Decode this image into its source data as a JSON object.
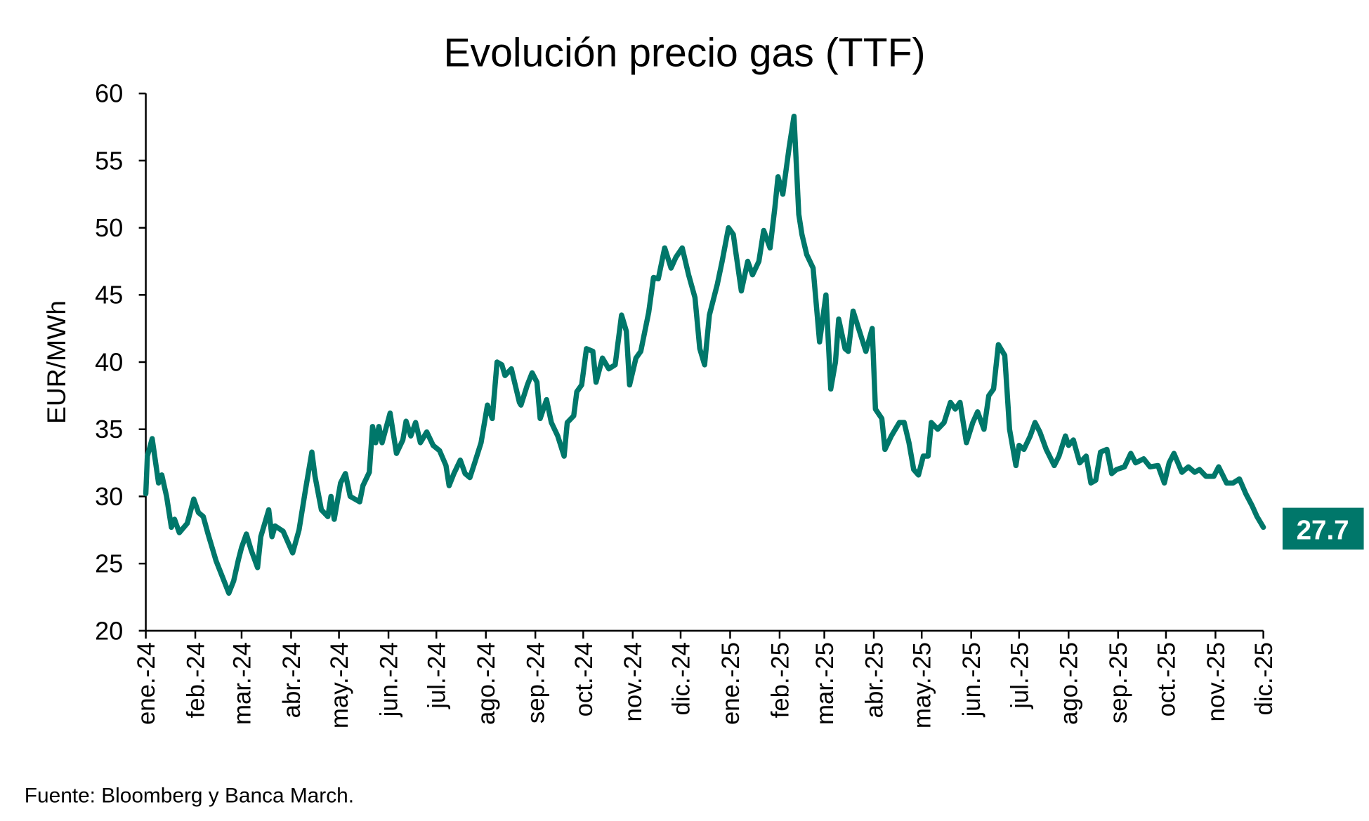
{
  "chart_data": {
    "type": "line",
    "title": "Evolución precio gas (TTF)",
    "ylabel": "EUR/MWh",
    "xlabel": "",
    "source": "Fuente: Bloomberg y Banca March.",
    "ylim": [
      20,
      60
    ],
    "yticks": [
      20,
      25,
      30,
      35,
      40,
      45,
      50,
      55,
      60
    ],
    "xlim": [
      "2024-01-01",
      "2025-12-01"
    ],
    "xticks": [
      {
        "date": "2024-01-01",
        "label": "ene.-24"
      },
      {
        "date": "2024-02-01",
        "label": "feb.-24"
      },
      {
        "date": "2024-03-01",
        "label": "mar.-24"
      },
      {
        "date": "2024-04-01",
        "label": "abr.-24"
      },
      {
        "date": "2024-05-01",
        "label": "may.-24"
      },
      {
        "date": "2024-06-01",
        "label": "jun.-24"
      },
      {
        "date": "2024-07-01",
        "label": "jul.-24"
      },
      {
        "date": "2024-08-01",
        "label": "ago.-24"
      },
      {
        "date": "2024-09-01",
        "label": "sep.-24"
      },
      {
        "date": "2024-10-01",
        "label": "oct.-24"
      },
      {
        "date": "2024-11-01",
        "label": "nov.-24"
      },
      {
        "date": "2024-12-01",
        "label": "dic.-24"
      },
      {
        "date": "2025-01-01",
        "label": "ene.-25"
      },
      {
        "date": "2025-02-01",
        "label": "feb.-25"
      },
      {
        "date": "2025-03-01",
        "label": "mar.-25"
      },
      {
        "date": "2025-04-01",
        "label": "abr.-25"
      },
      {
        "date": "2025-05-01",
        "label": "may.-25"
      },
      {
        "date": "2025-06-01",
        "label": "jun.-25"
      },
      {
        "date": "2025-07-01",
        "label": "jul.-25"
      },
      {
        "date": "2025-08-01",
        "label": "ago.-25"
      },
      {
        "date": "2025-09-01",
        "label": "sep.-25"
      },
      {
        "date": "2025-10-01",
        "label": "oct.-25"
      },
      {
        "date": "2025-11-01",
        "label": "nov.-25"
      },
      {
        "date": "2025-12-01",
        "label": "dic.-25"
      }
    ],
    "grid": false,
    "line_color": "#00776A",
    "last_value_label": "27.7",
    "series": [
      {
        "x": [
          "2024-01-01",
          "2024-01-02",
          "2024-01-05",
          "2024-01-09",
          "2024-01-11",
          "2024-01-14",
          "2024-01-17",
          "2024-01-19",
          "2024-01-22",
          "2024-01-27",
          "2024-01-31",
          "2024-02-03",
          "2024-02-06",
          "2024-02-09",
          "2024-02-14",
          "2024-02-18",
          "2024-02-22",
          "2024-02-25",
          "2024-02-28",
          "2024-03-01",
          "2024-03-04",
          "2024-03-07",
          "2024-03-11",
          "2024-03-13",
          "2024-03-18",
          "2024-03-20",
          "2024-03-22",
          "2024-03-27",
          "2024-04-02",
          "2024-04-06",
          "2024-04-10",
          "2024-04-14",
          "2024-04-16",
          "2024-04-20",
          "2024-04-24",
          "2024-04-26",
          "2024-04-28",
          "2024-05-02",
          "2024-05-05",
          "2024-05-08",
          "2024-05-14",
          "2024-05-16",
          "2024-05-20",
          "2024-05-22",
          "2024-05-24",
          "2024-05-26",
          "2024-05-28",
          "2024-06-02",
          "2024-06-06",
          "2024-06-10",
          "2024-06-12",
          "2024-06-15",
          "2024-06-18",
          "2024-06-21",
          "2024-06-25",
          "2024-06-29",
          "2024-07-03",
          "2024-07-07",
          "2024-07-09",
          "2024-07-12",
          "2024-07-16",
          "2024-07-19",
          "2024-07-22",
          "2024-07-25",
          "2024-07-29",
          "2024-08-02",
          "2024-08-05",
          "2024-08-08",
          "2024-08-11",
          "2024-08-13",
          "2024-08-17",
          "2024-08-22",
          "2024-08-23",
          "2024-08-27",
          "2024-08-30",
          "2024-09-02",
          "2024-09-04",
          "2024-09-08",
          "2024-09-11",
          "2024-09-15",
          "2024-09-19",
          "2024-09-21",
          "2024-09-25",
          "2024-09-27",
          "2024-09-30",
          "2024-10-03",
          "2024-10-07",
          "2024-10-09",
          "2024-10-13",
          "2024-10-17",
          "2024-10-21",
          "2024-10-25",
          "2024-10-28",
          "2024-10-30",
          "2024-11-03",
          "2024-11-06",
          "2024-11-11",
          "2024-11-14",
          "2024-11-17",
          "2024-11-21",
          "2024-11-25",
          "2024-11-28",
          "2024-12-02",
          "2024-12-06",
          "2024-12-10",
          "2024-12-13",
          "2024-12-16",
          "2024-12-19",
          "2024-12-24",
          "2024-12-27",
          "2024-12-31",
          "2025-01-03",
          "2025-01-05",
          "2025-01-08",
          "2025-01-12",
          "2025-01-15",
          "2025-01-19",
          "2025-01-22",
          "2025-01-26",
          "2025-01-29",
          "2025-01-31",
          "2025-02-03",
          "2025-02-07",
          "2025-02-10",
          "2025-02-13",
          "2025-02-15",
          "2025-02-18",
          "2025-02-22",
          "2025-02-26",
          "2025-03-02",
          "2025-03-05",
          "2025-03-08",
          "2025-03-10",
          "2025-03-14",
          "2025-03-16",
          "2025-03-19",
          "2025-03-23",
          "2025-03-27",
          "2025-03-31",
          "2025-04-02",
          "2025-04-06",
          "2025-04-08",
          "2025-04-12",
          "2025-04-17",
          "2025-04-20",
          "2025-04-23",
          "2025-04-26",
          "2025-04-29",
          "2025-05-02",
          "2025-05-05",
          "2025-05-07",
          "2025-05-11",
          "2025-05-15",
          "2025-05-19",
          "2025-05-22",
          "2025-05-25",
          "2025-05-29",
          "2025-06-02",
          "2025-06-05",
          "2025-06-09",
          "2025-06-12",
          "2025-06-15",
          "2025-06-18",
          "2025-06-22",
          "2025-06-25",
          "2025-06-29",
          "2025-07-01",
          "2025-07-04",
          "2025-07-08",
          "2025-07-11",
          "2025-07-14",
          "2025-07-18",
          "2025-07-23",
          "2025-07-26",
          "2025-07-30",
          "2025-08-01",
          "2025-08-04",
          "2025-08-08",
          "2025-08-12",
          "2025-08-15",
          "2025-08-18",
          "2025-08-21",
          "2025-08-25",
          "2025-08-28",
          "2025-08-31",
          "2025-09-05",
          "2025-09-09",
          "2025-09-12",
          "2025-09-17",
          "2025-09-21",
          "2025-09-26",
          "2025-09-30",
          "2025-10-03",
          "2025-10-06",
          "2025-10-11",
          "2025-10-15",
          "2025-10-19",
          "2025-10-22",
          "2025-10-26",
          "2025-10-31",
          "2025-11-03",
          "2025-11-08",
          "2025-11-12",
          "2025-11-16",
          "2025-11-20",
          "2025-11-24",
          "2025-11-27",
          "2025-12-01"
        ],
        "values": [
          30.2,
          33,
          34.3,
          31,
          31.6,
          30,
          27.7,
          28.3,
          27.3,
          28,
          29.8,
          28.8,
          28.5,
          27.2,
          25.2,
          24,
          22.8,
          23.7,
          25.3,
          26.2,
          27.2,
          26,
          24.7,
          27,
          29,
          27,
          27.8,
          27.4,
          25.8,
          27.5,
          30.5,
          33.3,
          31.5,
          29,
          28.5,
          30,
          28.3,
          31,
          31.7,
          30,
          29.6,
          30.8,
          31.8,
          35.2,
          34,
          35.2,
          34,
          36.2,
          33.2,
          34.2,
          35.6,
          34.5,
          35.5,
          34,
          34.8,
          33.8,
          33.4,
          32.3,
          30.8,
          31.7,
          32.7,
          31.7,
          31.4,
          32.5,
          34,
          36.8,
          35.8,
          40,
          39.8,
          39,
          39.5,
          37,
          36.8,
          38.3,
          39.2,
          38.5,
          35.8,
          37.2,
          35.5,
          34.5,
          33,
          35.5,
          36,
          37.8,
          38.3,
          41,
          40.8,
          38.5,
          40.3,
          39.5,
          39.8,
          43.5,
          42.3,
          38.3,
          40.3,
          40.8,
          43.7,
          46.3,
          46.2,
          48.5,
          47,
          47.8,
          48.5,
          46.5,
          44.8,
          41,
          39.8,
          43.5,
          45.8,
          47.5,
          50,
          49.5,
          47.8,
          45.3,
          47.5,
          46.5,
          47.5,
          49.8,
          48.5,
          51.5,
          53.8,
          52.5,
          56,
          58.3,
          51,
          49.5,
          48,
          47,
          41.5,
          45,
          38,
          40,
          43.2,
          41,
          40.8,
          43.8,
          42.3,
          40.8,
          42.5,
          36.5,
          35.8,
          33.5,
          34.5,
          35.5,
          35.5,
          34,
          32,
          31.6,
          33,
          33,
          35.5,
          35,
          35.5,
          37,
          36.5,
          37,
          34,
          35.5,
          36.3,
          35,
          37.5,
          38,
          41.3,
          40.5,
          35,
          32.3,
          33.8,
          33.5,
          34.5,
          35.5,
          34.8,
          33.5,
          32.3,
          33,
          34.5,
          33.8,
          34.2,
          32.5,
          33,
          31,
          31.2,
          33.3,
          33.5,
          31.7,
          32,
          32.2,
          33.2,
          32.5,
          32.8,
          32.2,
          32.3,
          31,
          32.5,
          33.2,
          31.8,
          32.2,
          31.8,
          32,
          31.5,
          31.5,
          32.2,
          31,
          31,
          31.3,
          30.2,
          29.3,
          28.5,
          27.7
        ]
      }
    ]
  }
}
